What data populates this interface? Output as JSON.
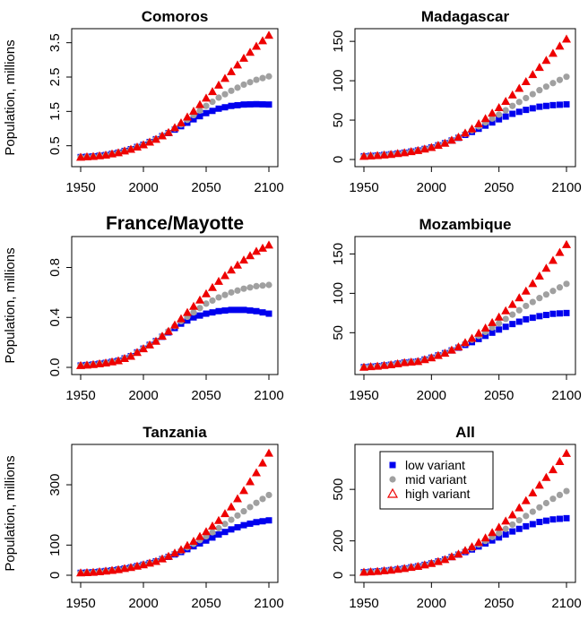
{
  "chart_data": [
    {
      "type": "scatter",
      "title": "Comoros",
      "xlabel": "",
      "ylabel": "Population, millions",
      "xlim": [
        1950,
        2100
      ],
      "ylim": [
        0.1,
        3.7
      ],
      "xticks": [
        "1950",
        "2000",
        "2050",
        "2100"
      ],
      "yticks": [
        "0.5",
        "1.5",
        "2.5",
        "3.5"
      ],
      "x": [
        1950,
        1960,
        1970,
        1980,
        1990,
        2000,
        2010,
        2020,
        2030,
        2040,
        2050,
        2060,
        2070,
        2080,
        2090,
        2100
      ],
      "series": [
        {
          "name": "low variant",
          "values": [
            0.17,
            0.19,
            0.23,
            0.3,
            0.4,
            0.53,
            0.69,
            0.87,
            1.07,
            1.27,
            1.45,
            1.58,
            1.66,
            1.7,
            1.71,
            1.7
          ]
        },
        {
          "name": "mid variant",
          "values": [
            0.17,
            0.19,
            0.23,
            0.3,
            0.4,
            0.53,
            0.69,
            0.88,
            1.12,
            1.39,
            1.66,
            1.9,
            2.1,
            2.28,
            2.42,
            2.52
          ]
        },
        {
          "name": "high variant",
          "values": [
            0.17,
            0.19,
            0.23,
            0.3,
            0.4,
            0.53,
            0.69,
            0.89,
            1.17,
            1.51,
            1.89,
            2.27,
            2.66,
            3.05,
            3.4,
            3.72
          ]
        }
      ]
    },
    {
      "type": "scatter",
      "title": "Madagascar",
      "xlabel": "",
      "ylabel": "Population, millions",
      "xlim": [
        1950,
        2100
      ],
      "ylim": [
        0,
        157
      ],
      "xticks": [
        "1950",
        "2000",
        "2050",
        "2100"
      ],
      "yticks": [
        "0",
        "50",
        "100",
        "150"
      ],
      "x": [
        1950,
        1960,
        1970,
        1980,
        1990,
        2000,
        2010,
        2020,
        2030,
        2040,
        2050,
        2060,
        2070,
        2080,
        2090,
        2100
      ],
      "series": [
        {
          "name": "low variant",
          "values": [
            4.1,
            5.1,
            6.6,
            8.7,
            11.5,
            15.3,
            20.7,
            27.5,
            35,
            43,
            51,
            58,
            63,
            67,
            69,
            70
          ]
        },
        {
          "name": "mid variant",
          "values": [
            4.1,
            5.1,
            6.6,
            8.7,
            11.5,
            15.3,
            20.7,
            28,
            37,
            47,
            57,
            68,
            78,
            88,
            97,
            105
          ]
        },
        {
          "name": "high variant",
          "values": [
            4.1,
            5.1,
            6.6,
            8.7,
            11.5,
            15.3,
            20.7,
            28.5,
            39,
            52,
            66,
            82,
            99,
            117,
            135,
            153
          ]
        }
      ]
    },
    {
      "type": "scatter",
      "title": "France/Mayotte",
      "xlabel": "",
      "ylabel": "Population, millions",
      "xlim": [
        1950,
        2100
      ],
      "ylim": [
        0,
        0.99
      ],
      "xticks": [
        "1950",
        "2000",
        "2050",
        "2100"
      ],
      "yticks": [
        "0.0",
        "0.4",
        "0.8"
      ],
      "x": [
        1950,
        1960,
        1970,
        1980,
        1990,
        2000,
        2010,
        2020,
        2030,
        2040,
        2050,
        2060,
        2070,
        2080,
        2090,
        2100
      ],
      "series": [
        {
          "name": "low variant",
          "values": [
            0.015,
            0.023,
            0.036,
            0.054,
            0.09,
            0.15,
            0.21,
            0.28,
            0.35,
            0.4,
            0.43,
            0.45,
            0.46,
            0.46,
            0.45,
            0.43
          ]
        },
        {
          "name": "mid variant",
          "values": [
            0.015,
            0.023,
            0.036,
            0.054,
            0.09,
            0.15,
            0.21,
            0.29,
            0.37,
            0.44,
            0.51,
            0.56,
            0.6,
            0.63,
            0.65,
            0.66
          ]
        },
        {
          "name": "high variant",
          "values": [
            0.015,
            0.023,
            0.036,
            0.054,
            0.09,
            0.15,
            0.21,
            0.29,
            0.39,
            0.49,
            0.59,
            0.69,
            0.78,
            0.86,
            0.93,
            0.98
          ]
        }
      ]
    },
    {
      "type": "scatter",
      "title": "Mozambique",
      "xlabel": "",
      "ylabel": "Population, millions",
      "xlim": [
        1950,
        2100
      ],
      "ylim": [
        6,
        163
      ],
      "xticks": [
        "1950",
        "2000",
        "2050",
        "2100"
      ],
      "yticks": [
        "50",
        "100",
        "150"
      ],
      "x": [
        1950,
        1960,
        1970,
        1980,
        1990,
        2000,
        2010,
        2020,
        2030,
        2040,
        2050,
        2060,
        2070,
        2080,
        2090,
        2100
      ],
      "series": [
        {
          "name": "low variant",
          "values": [
            6.3,
            7.6,
            9.4,
            12.1,
            13.6,
            18.3,
            24,
            31,
            38,
            46,
            54,
            61,
            67,
            71,
            74,
            75
          ]
        },
        {
          "name": "mid variant",
          "values": [
            6.3,
            7.6,
            9.4,
            12.1,
            13.6,
            18.3,
            24,
            31.5,
            41,
            51,
            62,
            73,
            84,
            94,
            103,
            112
          ]
        },
        {
          "name": "high variant",
          "values": [
            6.3,
            7.6,
            9.4,
            12.1,
            13.6,
            18.3,
            24,
            32,
            43,
            56,
            70,
            86,
            103,
            122,
            142,
            162
          ]
        }
      ]
    },
    {
      "type": "scatter",
      "title": "Tanzania",
      "xlabel": "",
      "ylabel": "Population, millions",
      "xlim": [
        1950,
        2100
      ],
      "ylim": [
        0,
        410
      ],
      "xticks": [
        "1950",
        "2000",
        "2050",
        "2100"
      ],
      "yticks": [
        "0",
        "100",
        "300"
      ],
      "x": [
        1950,
        1960,
        1970,
        1980,
        1990,
        2000,
        2010,
        2020,
        2030,
        2040,
        2050,
        2060,
        2070,
        2080,
        2090,
        2100
      ],
      "series": [
        {
          "name": "low variant",
          "values": [
            8,
            10,
            14,
            19,
            26,
            35,
            46,
            61,
            77,
            96,
            115,
            135,
            152,
            166,
            176,
            182
          ]
        },
        {
          "name": "mid variant",
          "values": [
            8,
            10,
            14,
            19,
            26,
            35,
            46,
            62,
            81,
            104,
            129,
            156,
            184,
            212,
            240,
            266
          ]
        },
        {
          "name": "high variant",
          "values": [
            8,
            10,
            14,
            19,
            26,
            35,
            46,
            63,
            85,
            113,
            145,
            182,
            227,
            281,
            340,
            405
          ]
        }
      ]
    },
    {
      "type": "scatter",
      "title": "All",
      "xlabel": "",
      "ylabel": "Population, millions",
      "xlim": [
        1950,
        2100
      ],
      "ylim": [
        0,
        720
      ],
      "xticks": [
        "1950",
        "2000",
        "2050",
        "2100"
      ],
      "yticks": [
        "0",
        "200",
        "500"
      ],
      "legend": "top-left",
      "x": [
        1950,
        1960,
        1970,
        1980,
        1990,
        2000,
        2010,
        2020,
        2030,
        2040,
        2050,
        2060,
        2070,
        2080,
        2090,
        2100
      ],
      "series": [
        {
          "name": "low variant",
          "values": [
            18,
            23,
            30,
            40,
            52,
            69,
            92,
            120,
            150,
            185,
            220,
            255,
            285,
            310,
            325,
            332
          ]
        },
        {
          "name": "mid variant",
          "values": [
            18,
            23,
            30,
            40,
            52,
            69,
            92,
            122,
            158,
            200,
            245,
            295,
            345,
            395,
            445,
            490
          ]
        },
        {
          "name": "high variant",
          "values": [
            18,
            23,
            30,
            40,
            52,
            69,
            92,
            124,
            166,
            218,
            280,
            352,
            435,
            525,
            615,
            710
          ]
        }
      ]
    }
  ],
  "legend": {
    "items": [
      "low variant",
      "mid variant",
      "high variant"
    ]
  },
  "colors": {
    "low": "#0000ee",
    "mid": "#a0a0a0",
    "high": "#ee0000"
  },
  "series_markers": {
    "low variant": "square",
    "mid variant": "circle",
    "high variant": "triangle"
  }
}
